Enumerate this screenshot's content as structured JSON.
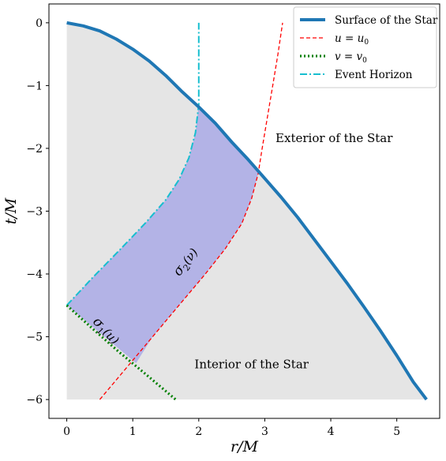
{
  "chart_data": {
    "type": "line",
    "xlabel": "r/M",
    "ylabel": "t/M",
    "xlim": [
      -0.27,
      5.65
    ],
    "ylim": [
      -6.3,
      0.3
    ],
    "xticks": [
      0,
      1,
      2,
      3,
      4,
      5
    ],
    "yticks": [
      0,
      -1,
      -2,
      -3,
      -4,
      -5,
      -6
    ],
    "xtick_labels": [
      "0",
      "1",
      "2",
      "3",
      "4",
      "5"
    ],
    "ytick_labels": [
      "0",
      "−1",
      "−2",
      "−3",
      "−4",
      "−5",
      "−6"
    ],
    "grid": false,
    "legend_position": "top-right",
    "series": [
      {
        "name": "Surface of the Star",
        "color": "#1f77b4",
        "style": "solid",
        "x": [
          0,
          0.25,
          0.5,
          0.75,
          1.0,
          1.25,
          1.5,
          1.75,
          2.0,
          2.25,
          2.5,
          2.75,
          3.0,
          3.25,
          3.5,
          3.75,
          4.0,
          4.25,
          4.5,
          4.75,
          5.0,
          5.25,
          5.45
        ],
        "y": [
          0,
          -0.05,
          -0.13,
          -0.26,
          -0.42,
          -0.61,
          -0.84,
          -1.1,
          -1.34,
          -1.6,
          -1.9,
          -2.18,
          -2.48,
          -2.78,
          -3.1,
          -3.45,
          -3.8,
          -4.15,
          -4.52,
          -4.9,
          -5.3,
          -5.72,
          -6.0
        ]
      },
      {
        "name": "u = u_0",
        "label_display": [
          "u",
          "=",
          "u",
          "0"
        ],
        "color": "#ff0000",
        "style": "dashed",
        "x": [
          0.5,
          0.9,
          1.3,
          1.7,
          2.1,
          2.4,
          2.65,
          2.8,
          2.9,
          2.96,
          3.04,
          3.12,
          3.2,
          3.27
        ],
        "y": [
          -6.0,
          -5.5,
          -5.0,
          -4.5,
          -4.0,
          -3.6,
          -3.2,
          -2.8,
          -2.4,
          -2.0,
          -1.5,
          -1.0,
          -0.5,
          0.0
        ]
      },
      {
        "name": "v = v_0",
        "label_display": [
          "v",
          "=",
          "v",
          "0"
        ],
        "color": "#008000",
        "style": "dotted",
        "x": [
          0,
          0.4,
          0.8,
          1.2,
          1.65
        ],
        "y": [
          -4.5,
          -4.88,
          -5.25,
          -5.6,
          -6.0
        ]
      },
      {
        "name": "Event Horizon",
        "color": "#17becf",
        "style": "dashdot",
        "x": [
          0,
          0.4,
          0.8,
          1.2,
          1.5,
          1.7,
          1.85,
          1.95,
          2.0,
          2.0,
          2.0
        ],
        "y": [
          -4.5,
          -4.05,
          -3.62,
          -3.18,
          -2.82,
          -2.5,
          -2.15,
          -1.75,
          -1.3,
          -0.6,
          0.0
        ]
      }
    ],
    "regions": [
      {
        "name": "interior",
        "color": "#e5e5e5"
      },
      {
        "name": "sigma-region",
        "color": "#b3b3e6"
      }
    ],
    "annotations": [
      {
        "text": "Exterior of the Star",
        "x": 4.05,
        "y": -1.9
      },
      {
        "text": "Interior of the Star",
        "x": 2.8,
        "y": -5.5
      },
      {
        "text_parts": [
          "σ",
          "1",
          "(u)"
        ],
        "x": 0.55,
        "y": -4.95,
        "rotation": 47
      },
      {
        "text_parts": [
          "σ",
          "2",
          "(ν)"
        ],
        "x": 1.85,
        "y": -3.85,
        "rotation": -52
      }
    ]
  }
}
